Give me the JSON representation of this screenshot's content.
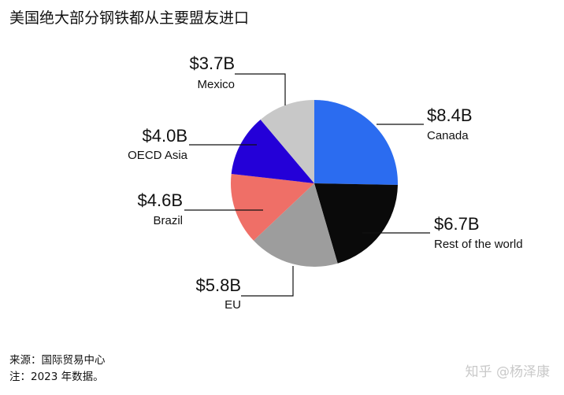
{
  "title": "美国绝大部分钢铁都从主要盟友进口",
  "footer": {
    "source": "来源：国际贸易中心",
    "note": "注：2023 年数据。"
  },
  "watermark": "知乎 @杨泽康",
  "chart_data": {
    "type": "pie",
    "unit": "$B",
    "slices": [
      {
        "name": "Canada",
        "value": 8.4,
        "value_label": "$8.4B",
        "color": "#2b6cf0"
      },
      {
        "name": "Rest of the world",
        "value": 6.7,
        "value_label": "$6.7B",
        "color": "#0a0a0a"
      },
      {
        "name": "EU",
        "value": 5.8,
        "value_label": "$5.8B",
        "color": "#9d9d9d"
      },
      {
        "name": "Brazil",
        "value": 4.6,
        "value_label": "$4.6B",
        "color": "#ef6f67"
      },
      {
        "name": "OECD Asia",
        "value": 4.0,
        "value_label": "$4.0B",
        "color": "#2400d8"
      },
      {
        "name": "Mexico",
        "value": 3.7,
        "value_label": "$3.7B",
        "color": "#c8c8c8"
      }
    ]
  }
}
